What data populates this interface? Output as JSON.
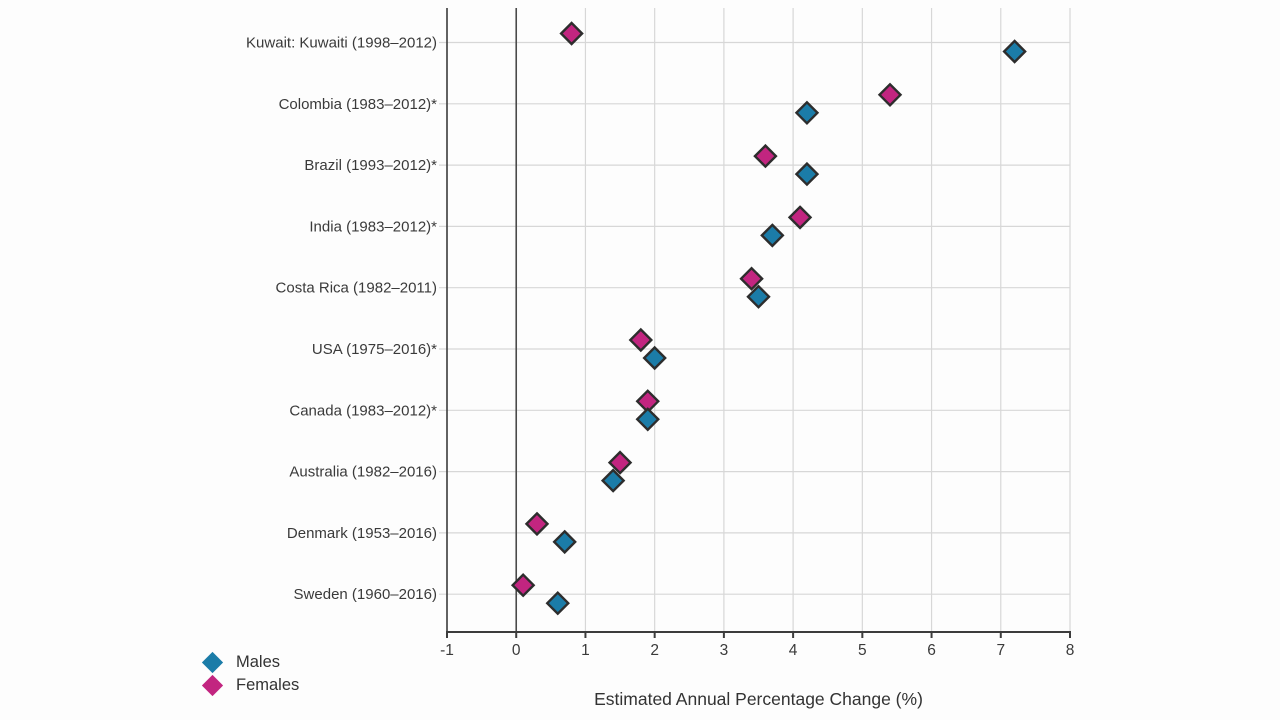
{
  "chart_data": {
    "type": "scatter",
    "subtype": "horizontal-dot-plot",
    "title": "",
    "xlabel": "Estimated Annual Percentage Change (%)",
    "ylabel": "",
    "xlim": [
      -1,
      8
    ],
    "xticks": [
      -1,
      0,
      1,
      2,
      3,
      4,
      5,
      6,
      7,
      8
    ],
    "grid": true,
    "zero_reference_line": true,
    "legend_position": "bottom-left",
    "marker": "diamond",
    "categories": [
      "Kuwait: Kuwaiti (1998–2012)",
      "Colombia (1983–2012)*",
      "Brazil (1993–2012)*",
      "India (1983–2012)*",
      "Costa Rica (1982–2011)",
      "USA (1975–2016)*",
      "Canada (1983–2012)*",
      "Australia (1982–2016)",
      "Denmark (1953–2016)",
      "Sweden (1960–2016)"
    ],
    "series": [
      {
        "name": "Males",
        "color": "#1b7ca8",
        "values": [
          7.2,
          4.2,
          4.2,
          3.7,
          3.5,
          2.0,
          1.9,
          1.4,
          0.7,
          0.6
        ]
      },
      {
        "name": "Females",
        "color": "#c22580",
        "values": [
          0.8,
          5.4,
          3.6,
          4.1,
          3.4,
          1.8,
          1.9,
          1.5,
          0.3,
          0.1
        ]
      }
    ],
    "colors": {
      "marker_outline": "#2d2d2d",
      "gridline": "#d7d7d7",
      "axis": "#3c3c3c",
      "zero_line": "#4a4a4a",
      "text": "#3a3a3a"
    }
  }
}
